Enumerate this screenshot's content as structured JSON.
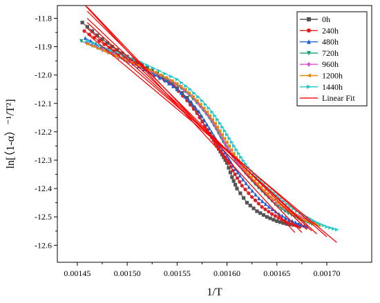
{
  "chart_data": {
    "type": "scatter",
    "xlabel": "1/T",
    "ylabel": "ln[（1-α）⁻¹/T²]",
    "xlim": [
      0.00143,
      0.001745
    ],
    "ylim": [
      -12.66,
      -11.755
    ],
    "xticks": [
      0.00145,
      0.0015,
      0.00155,
      0.0016,
      0.00165,
      0.0017
    ],
    "xtick_labels": [
      "0.00145",
      "0.00150",
      "0.00155",
      "0.00160",
      "0.00165",
      "0.00170"
    ],
    "yticks": [
      -11.8,
      -11.9,
      -12.0,
      -12.1,
      -12.2,
      -12.3,
      -12.4,
      -12.5,
      -12.6
    ],
    "ytick_labels": [
      "-11.8",
      "-11.9",
      "-12.0",
      "-12.1",
      "-12.2",
      "-12.3",
      "-12.4",
      "-12.5",
      "-12.6"
    ],
    "legend_position": "top-right",
    "series": [
      {
        "name": "0h",
        "color": "#555555",
        "marker": "square",
        "x": [
          0.001455,
          0.00147,
          0.001485,
          0.0015,
          0.001515,
          0.00153,
          0.001545,
          0.00156,
          0.00157,
          0.001578,
          0.001585,
          0.00159,
          0.001595,
          0.0016,
          0.001605,
          0.00161,
          0.00162,
          0.00163,
          0.00164,
          0.00165,
          0.00166,
          0.00167
        ],
        "y": [
          -11.815,
          -11.86,
          -11.9,
          -11.935,
          -11.965,
          -11.995,
          -12.03,
          -12.08,
          -12.13,
          -12.18,
          -12.22,
          -12.25,
          -12.28,
          -12.31,
          -12.36,
          -12.4,
          -12.45,
          -12.48,
          -12.5,
          -12.515,
          -12.525,
          -12.53
        ]
      },
      {
        "name": "240h",
        "color": "#e02020",
        "marker": "circle",
        "x": [
          0.001457,
          0.001472,
          0.001487,
          0.001502,
          0.001517,
          0.001532,
          0.001547,
          0.00156,
          0.00157,
          0.001578,
          0.001585,
          0.00159,
          0.001596,
          0.001602,
          0.001608,
          0.001615,
          0.001625,
          0.001635,
          0.001645,
          0.001655,
          0.001665,
          0.001673
        ],
        "y": [
          -11.845,
          -11.88,
          -11.915,
          -11.945,
          -11.975,
          -12.005,
          -12.04,
          -12.09,
          -12.135,
          -12.18,
          -12.22,
          -12.25,
          -12.28,
          -12.31,
          -12.35,
          -12.39,
          -12.43,
          -12.465,
          -12.49,
          -12.51,
          -12.525,
          -12.535
        ]
      },
      {
        "name": "480h",
        "color": "#1f5fd6",
        "marker": "triangle-up",
        "x": [
          0.001458,
          0.001474,
          0.00149,
          0.001506,
          0.001522,
          0.001538,
          0.00155,
          0.001562,
          0.001572,
          0.00158,
          0.001587,
          0.001593,
          0.0016,
          0.001606,
          0.001613,
          0.001622,
          0.001632,
          0.001642,
          0.001652,
          0.001662,
          0.001672,
          0.00168
        ],
        "y": [
          -11.87,
          -11.9,
          -11.93,
          -11.96,
          -11.99,
          -12.02,
          -12.05,
          -12.09,
          -12.13,
          -12.175,
          -12.215,
          -12.25,
          -12.285,
          -12.32,
          -12.355,
          -12.395,
          -12.435,
          -12.465,
          -12.49,
          -12.51,
          -12.525,
          -12.535
        ]
      },
      {
        "name": "720h",
        "color": "#1a9e6e",
        "marker": "triangle-down",
        "x": [
          0.001454,
          0.00147,
          0.001486,
          0.001502,
          0.001518,
          0.001534,
          0.00155,
          0.001562,
          0.001573,
          0.001582,
          0.001589,
          0.001596,
          0.001603,
          0.00161,
          0.001618,
          0.001628,
          0.001638,
          0.001648,
          0.001658,
          0.001668,
          0.001678,
          0.001685
        ],
        "y": [
          -11.88,
          -11.905,
          -11.93,
          -11.955,
          -11.98,
          -12.005,
          -12.035,
          -12.07,
          -12.11,
          -12.15,
          -12.19,
          -12.235,
          -12.275,
          -12.31,
          -12.345,
          -12.385,
          -12.42,
          -12.455,
          -12.48,
          -12.5,
          -12.515,
          -12.525
        ]
      },
      {
        "name": "960h",
        "color": "#d651d6",
        "marker": "diamond",
        "x": [
          0.001459,
          0.001475,
          0.001491,
          0.001507,
          0.001523,
          0.001539,
          0.001553,
          0.001565,
          0.001575,
          0.001584,
          0.001591,
          0.001598,
          0.001605,
          0.001612,
          0.00162,
          0.00163,
          0.00164,
          0.00165,
          0.00166,
          0.00167,
          0.00168,
          0.001688
        ],
        "y": [
          -11.885,
          -11.91,
          -11.935,
          -11.96,
          -11.985,
          -12.01,
          -12.04,
          -12.075,
          -12.115,
          -12.155,
          -12.195,
          -12.24,
          -12.28,
          -12.315,
          -12.35,
          -12.385,
          -12.42,
          -12.45,
          -12.475,
          -12.495,
          -12.51,
          -12.52
        ]
      },
      {
        "name": "1200h",
        "color": "#e08a00",
        "marker": "triangle-left",
        "x": [
          0.00146,
          0.001477,
          0.001494,
          0.001511,
          0.001528,
          0.001545,
          0.001558,
          0.00157,
          0.00158,
          0.001588,
          0.001595,
          0.001602,
          0.001609,
          0.001616,
          0.001624,
          0.001634,
          0.001644,
          0.001654,
          0.001664,
          0.001674,
          0.001684,
          0.001692
        ],
        "y": [
          -11.89,
          -11.915,
          -11.94,
          -11.965,
          -11.99,
          -12.02,
          -12.05,
          -12.09,
          -12.13,
          -12.17,
          -12.21,
          -12.25,
          -12.29,
          -12.325,
          -12.36,
          -12.395,
          -12.43,
          -12.46,
          -12.485,
          -12.505,
          -12.52,
          -12.53
        ]
      },
      {
        "name": "1440h",
        "color": "#22c7c7",
        "marker": "triangle-right",
        "x": [
          0.00146,
          0.001478,
          0.001496,
          0.001514,
          0.001532,
          0.00155,
          0.001563,
          0.001575,
          0.001585,
          0.001593,
          0.0016,
          0.001607,
          0.001614,
          0.001621,
          0.00163,
          0.00164,
          0.00165,
          0.00166,
          0.00167,
          0.00168,
          0.00169,
          0.0017,
          0.00171
        ],
        "y": [
          -11.88,
          -11.905,
          -11.93,
          -11.955,
          -11.985,
          -12.015,
          -12.05,
          -12.09,
          -12.13,
          -12.17,
          -12.21,
          -12.25,
          -12.29,
          -12.325,
          -12.36,
          -12.395,
          -12.425,
          -12.455,
          -12.48,
          -12.5,
          -12.52,
          -12.535,
          -12.545
        ]
      },
      {
        "name": "Linear Fit",
        "color": "#ff0000",
        "type": "line",
        "lines": [
          {
            "x": [
              0.001458,
              0.001668
            ],
            "y": [
              -11.755,
              -12.555
            ]
          },
          {
            "x": [
              0.00146,
              0.001675
            ],
            "y": [
              -11.76,
              -12.555
            ]
          },
          {
            "x": [
              0.00146,
              0.00168
            ],
            "y": [
              -11.775,
              -12.545
            ]
          },
          {
            "x": [
              0.00146,
              0.001685
            ],
            "y": [
              -11.8,
              -12.55
            ]
          },
          {
            "x": [
              0.00146,
              0.00169
            ],
            "y": [
              -11.815,
              -12.56
            ]
          },
          {
            "x": [
              0.00146,
              0.0017
            ],
            "y": [
              -11.835,
              -12.57
            ]
          },
          {
            "x": [
              0.00146,
              0.00171
            ],
            "y": [
              -11.855,
              -12.59
            ]
          }
        ]
      }
    ]
  }
}
